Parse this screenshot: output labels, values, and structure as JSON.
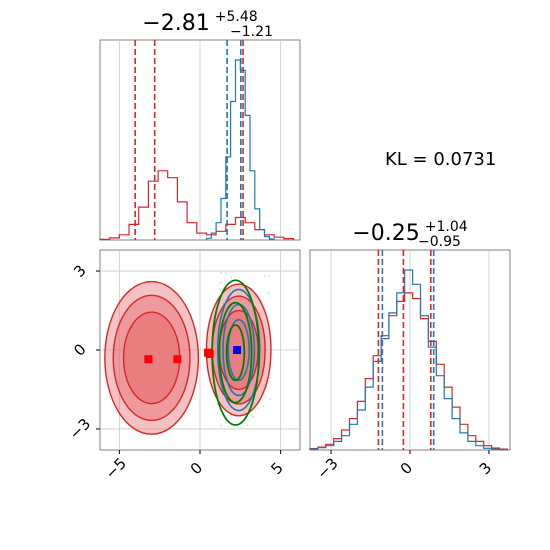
{
  "chart_data": [
    {
      "type": "histogram",
      "panel": "marginal-x",
      "title": {
        "median": "−2.81",
        "plus": "+5.48",
        "minus": "−1.21"
      },
      "xlim": [
        -6.2,
        6.2
      ],
      "series": [
        {
          "name": "",
          "color": "#d62728",
          "bins_x": [
            -6.2,
            -5.6,
            -5.0,
            -4.4,
            -3.8,
            -3.2,
            -2.6,
            -2.0,
            -1.4,
            -0.8,
            -0.2,
            0.4,
            1.0,
            1.6,
            2.2,
            2.8,
            3.4,
            4.0,
            4.6,
            5.2,
            5.8
          ],
          "counts": [
            0.2,
            0.6,
            1.5,
            4.5,
            9.5,
            17,
            20,
            18,
            11,
            5,
            2,
            1.5,
            2.5,
            4.5,
            6.5,
            5,
            3,
            1.5,
            0.8,
            0.4
          ]
        },
        {
          "name": "",
          "color": "#1f77b4",
          "bins_x": [
            0.4,
            0.7,
            1.0,
            1.3,
            1.6,
            1.9,
            2.2,
            2.5,
            2.8,
            3.1,
            3.4,
            3.7,
            4.0,
            4.3,
            4.6
          ],
          "counts": [
            0.5,
            2,
            5,
            12,
            24,
            40,
            52,
            49,
            36,
            20,
            9,
            3,
            1,
            0.3
          ]
        }
      ],
      "quantile_lines": [
        {
          "color": "#d62728",
          "x": [
            -4.02,
            -2.81,
            2.67
          ]
        },
        {
          "color": "#1f77b4",
          "x": [
            1.68,
            2.53
          ]
        }
      ]
    },
    {
      "type": "contour",
      "panel": "joint",
      "xlim": [
        -6.2,
        6.2
      ],
      "ylim": [
        -3.8,
        3.8
      ],
      "xticks": [
        "−5",
        "0",
        "5"
      ],
      "xtick_values": [
        -5,
        0,
        5
      ],
      "yticks": [
        "−3",
        "0",
        "3"
      ],
      "ytick_values": [
        -3,
        0,
        3
      ],
      "red_blobs": [
        {
          "cx": -3.0,
          "cy": -0.3,
          "rx": 2.9,
          "ry": 2.9
        },
        {
          "cx": 2.4,
          "cy": 0.0,
          "rx": 2.0,
          "ry": 2.5
        }
      ],
      "blue_contours": {
        "cx": 2.4,
        "cy": 0.0,
        "rx": 1.3,
        "ry": 2.3
      },
      "green_contours": {
        "cx": 2.2,
        "cy": -0.1,
        "rx": [
          0.55,
          1.0,
          1.45
        ],
        "ry": [
          1.05,
          1.9,
          2.75
        ]
      },
      "red_markers": [
        [
          -3.2,
          -0.35
        ],
        [
          -1.4,
          -0.35
        ],
        [
          0.6,
          -0.15
        ],
        [
          0.5,
          -0.1
        ]
      ],
      "blue_marker": [
        2.3,
        0.0
      ]
    },
    {
      "type": "histogram",
      "panel": "marginal-y",
      "title": {
        "median": "−0.25",
        "plus": "+1.04",
        "minus": "−0.95"
      },
      "xlim": [
        -3.8,
        3.8
      ],
      "xticks": [
        "−3",
        "0",
        "3"
      ],
      "xtick_values": [
        -3,
        0,
        3
      ],
      "series": [
        {
          "name": "",
          "color": "#d62728",
          "bins_x": [
            -3.8,
            -3.5,
            -3.2,
            -2.9,
            -2.6,
            -2.3,
            -2.0,
            -1.7,
            -1.4,
            -1.1,
            -0.8,
            -0.5,
            -0.2,
            0.1,
            0.4,
            0.7,
            1.0,
            1.3,
            1.6,
            1.9,
            2.2,
            2.5,
            2.8,
            3.1,
            3.4,
            3.7
          ],
          "counts": [
            0.5,
            1,
            2,
            4,
            7,
            11,
            17,
            25,
            33,
            40,
            47,
            52,
            55,
            53,
            46,
            38,
            30,
            22,
            15,
            9,
            5,
            3,
            1.5,
            0.7,
            0.3
          ]
        },
        {
          "name": "",
          "color": "#1f77b4",
          "bins_x": [
            -3.8,
            -3.5,
            -3.2,
            -2.9,
            -2.6,
            -2.3,
            -2.0,
            -1.7,
            -1.4,
            -1.1,
            -0.8,
            -0.5,
            -0.2,
            0.1,
            0.4,
            0.7,
            1.0,
            1.3,
            1.6,
            1.9,
            2.2,
            2.5,
            2.8,
            3.1,
            3.4,
            3.7
          ],
          "counts": [
            0.3,
            0.8,
            1.5,
            3,
            5,
            9,
            14,
            22,
            31,
            39,
            48,
            55,
            63,
            58,
            47,
            36,
            26,
            18,
            11,
            6,
            3,
            1.5,
            0.6,
            0.3,
            0.1
          ]
        }
      ],
      "quantile_lines": [
        {
          "color": "#d62728",
          "x": [
            -1.2,
            -0.25,
            0.79
          ]
        },
        {
          "color": "#1f77b4",
          "x": [
            -1.05,
            0.9
          ]
        }
      ]
    }
  ],
  "annotation": {
    "kl": "KL = 0.0731"
  }
}
